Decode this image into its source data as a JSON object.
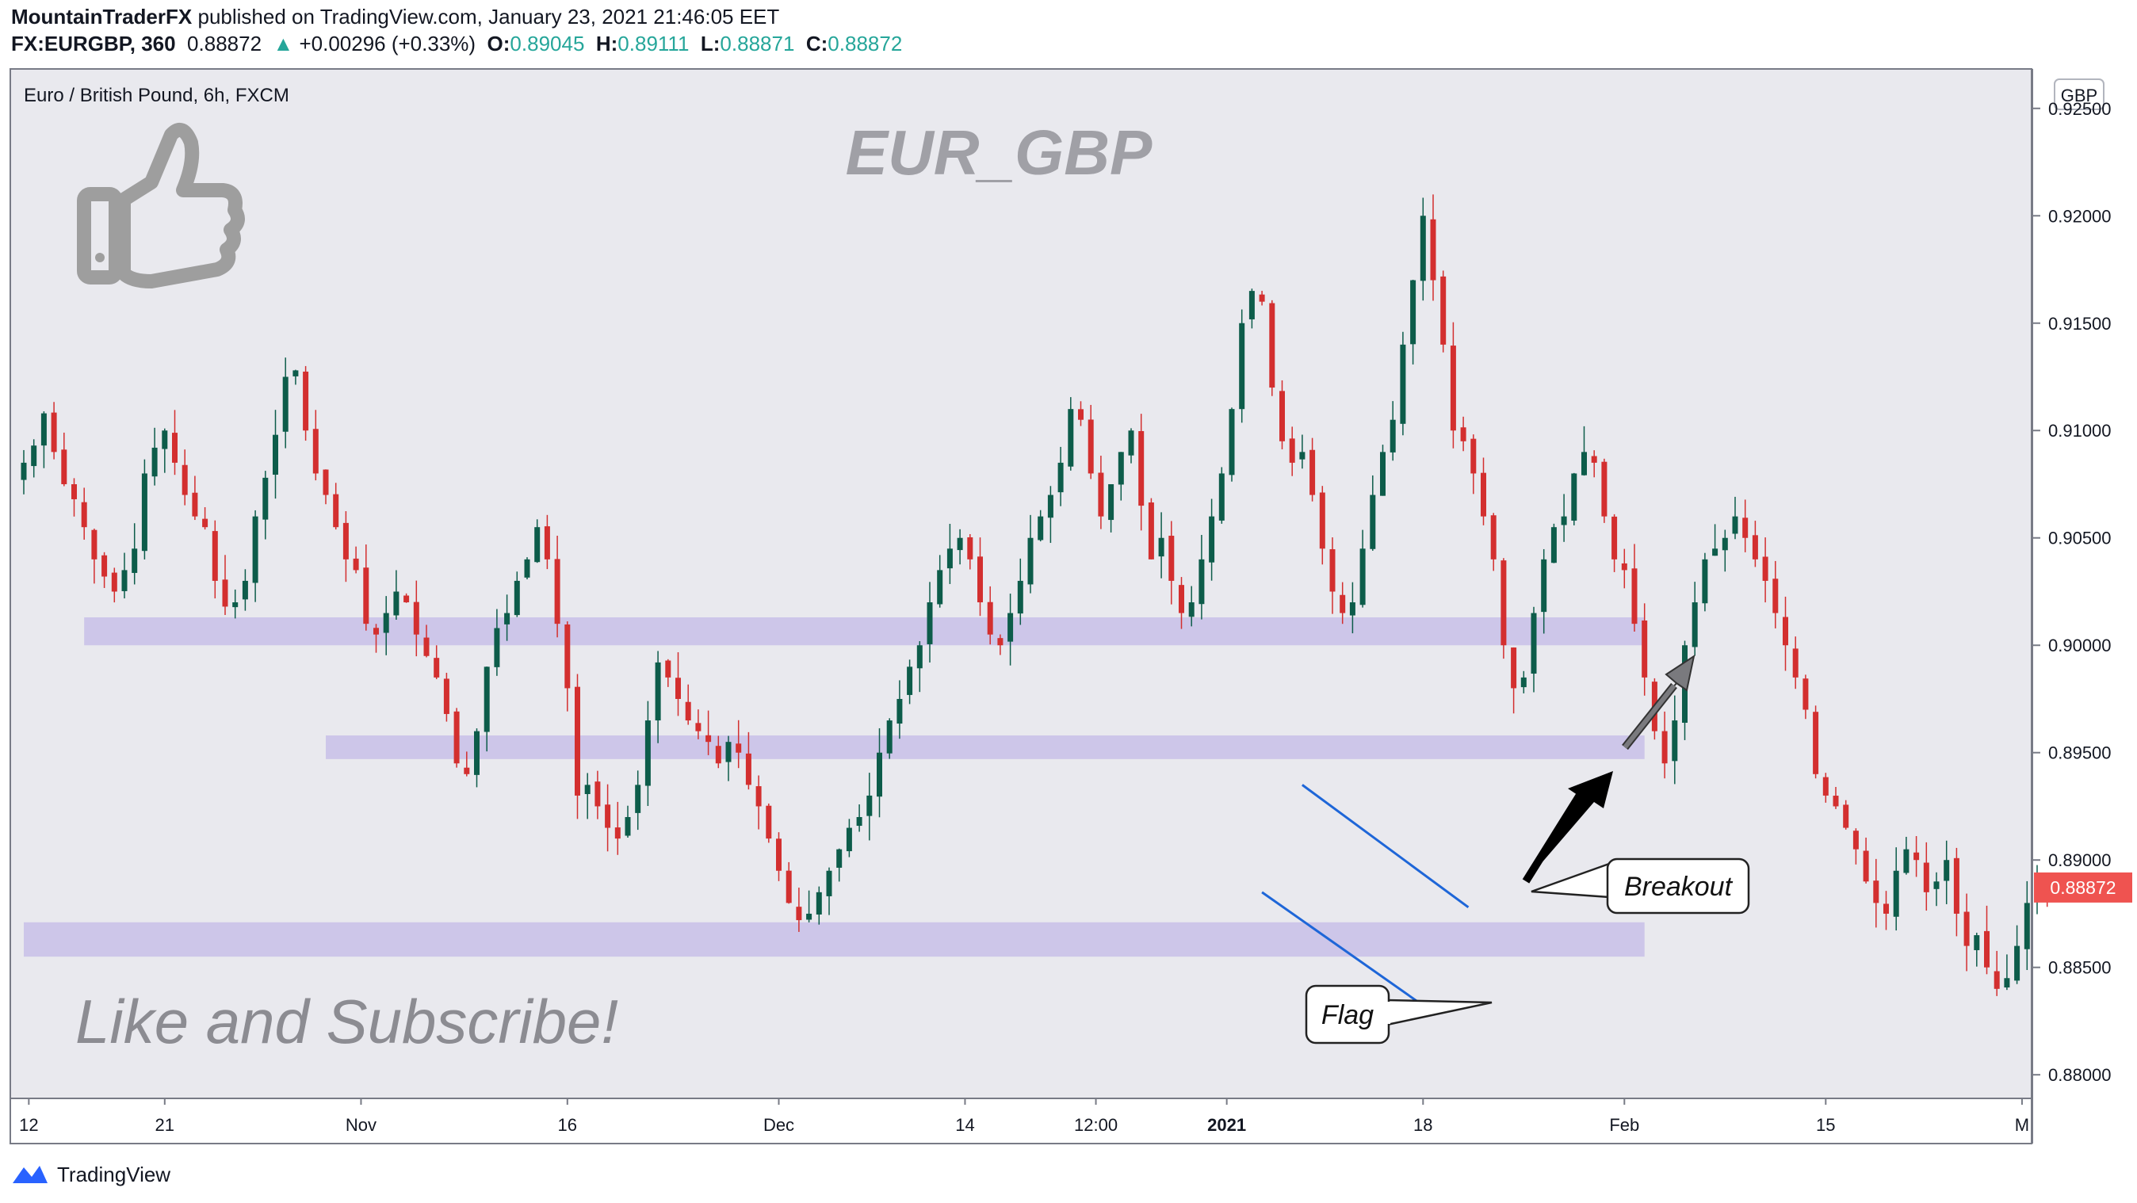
{
  "header": {
    "author": "MountainTraderFX",
    "published_text": "published on TradingView.com, January 23, 2021 21:46:05 EET",
    "symbol": "FX:EURGBP, 360",
    "last": "0.88872",
    "change_arrow": "▲",
    "change": "+0.00296 (+0.33%)",
    "o_label": "O:",
    "o": "0.89045",
    "h_label": "H:",
    "h": "0.89111",
    "l_label": "L:",
    "l": "0.88871",
    "c_label": "C:",
    "c": "0.88872"
  },
  "chart_title": "Euro / British Pound, 6h, FXCM",
  "watermark": "EUR_GBP",
  "cta_text": "Like and Subscribe!",
  "currency_badge": "GBP",
  "price_tag": "0.88872",
  "callouts": {
    "breakout": "Breakout",
    "flag": "Flag"
  },
  "footer": {
    "brand": "TradingView"
  },
  "icons": [
    "thumbs-up-icon",
    "tradingview-logo-icon"
  ],
  "colors": {
    "up": "#26a69a",
    "down": "#ef5350",
    "candle_up_body": "#0d5c4a",
    "candle_down_body": "#d32f2f",
    "zone": "#c8bfe7",
    "channel": "#1e66d8",
    "price_tag_bg": "#ef5350",
    "plot_bg": "#e9e9ee"
  },
  "chart_data": {
    "type": "candlestick",
    "title": "Euro / British Pound, 6h, FXCM",
    "y_ticks": [
      "0.92500",
      "0.92000",
      "0.91500",
      "0.91000",
      "0.90500",
      "0.90000",
      "0.89500",
      "0.89000",
      "0.88500",
      "0.88000"
    ],
    "y_range": [
      0.8789,
      0.9268
    ],
    "x_ticks": [
      {
        "label": "12",
        "i": 0.5
      },
      {
        "label": "21",
        "i": 14
      },
      {
        "label": "Nov",
        "i": 33.5
      },
      {
        "label": "16",
        "i": 54
      },
      {
        "label": "Dec",
        "i": 75
      },
      {
        "label": "14",
        "i": 93.5
      },
      {
        "label": "12:00",
        "i": 106.5
      },
      {
        "label": "2021",
        "i": 119.5,
        "bold": true
      },
      {
        "label": "18",
        "i": 139
      },
      {
        "label": "Feb",
        "i": 159
      },
      {
        "label": "15",
        "i": 179
      },
      {
        "label": "M",
        "i": 198.5
      }
    ],
    "candle_index_span": [
      0,
      200
    ],
    "series_closes": [
      0.9085,
      0.9093,
      0.9108,
      0.909,
      0.9075,
      0.9068,
      0.9055,
      0.904,
      0.9032,
      0.9025,
      0.9035,
      0.9045,
      0.908,
      0.9092,
      0.91,
      0.9085,
      0.907,
      0.906,
      0.9055,
      0.903,
      0.9018,
      0.902,
      0.903,
      0.906,
      0.9078,
      0.9098,
      0.9125,
      0.9128,
      0.91,
      0.908,
      0.907,
      0.9055,
      0.904,
      0.9035,
      0.901,
      0.9005,
      0.9015,
      0.9025,
      0.902,
      0.9005,
      0.8995,
      0.8985,
      0.8968,
      0.8945,
      0.894,
      0.896,
      0.899,
      0.9008,
      0.9015,
      0.903,
      0.904,
      0.9055,
      0.904,
      0.901,
      0.898,
      0.893,
      0.8935,
      0.8925,
      0.8915,
      0.891,
      0.892,
      0.8935,
      0.8965,
      0.8992,
      0.8985,
      0.8975,
      0.8965,
      0.896,
      0.8955,
      0.8945,
      0.8955,
      0.895,
      0.8935,
      0.8925,
      0.891,
      0.8895,
      0.888,
      0.8872,
      0.8875,
      0.8885,
      0.8895,
      0.8905,
      0.8915,
      0.892,
      0.893,
      0.895,
      0.8965,
      0.8975,
      0.899,
      0.9,
      0.902,
      0.9035,
      0.9045,
      0.905,
      0.904,
      0.902,
      0.9005,
      0.9,
      0.9015,
      0.903,
      0.905,
      0.906,
      0.907,
      0.9085,
      0.911,
      0.9105,
      0.908,
      0.906,
      0.9075,
      0.909,
      0.91,
      0.9065,
      0.904,
      0.905,
      0.903,
      0.9015,
      0.902,
      0.904,
      0.906,
      0.908,
      0.911,
      0.915,
      0.9165,
      0.916,
      0.912,
      0.9095,
      0.9085,
      0.909,
      0.907,
      0.9045,
      0.9025,
      0.9015,
      0.902,
      0.9045,
      0.907,
      0.909,
      0.9105,
      0.914,
      0.917,
      0.92,
      0.917,
      0.914,
      0.91,
      0.9095,
      0.908,
      0.906,
      0.904,
      0.9,
      0.898,
      0.8985,
      0.9015,
      0.904,
      0.9055,
      0.906,
      0.908,
      0.909,
      0.9085,
      0.906,
      0.904,
      0.9035,
      0.901,
      0.8985,
      0.896,
      0.8945,
      0.8965,
      0.9,
      0.902,
      0.904,
      0.9045,
      0.905,
      0.906,
      0.905,
      0.904,
      0.903,
      0.9015,
      0.9,
      0.8985,
      0.897,
      0.894,
      0.893,
      0.8925,
      0.8915,
      0.8905,
      0.889,
      0.888,
      0.8875,
      0.8895,
      0.8905,
      0.89,
      0.8885,
      0.889,
      0.89,
      0.8875,
      0.886,
      0.8865,
      0.885,
      0.884,
      0.8845,
      0.886,
      0.888,
      0.8892,
      0.8887
    ],
    "zones": [
      {
        "from_i": 6,
        "to_i": 161,
        "low": 0.9,
        "high": 0.9013
      },
      {
        "from_i": 30,
        "to_i": 161,
        "low": 0.8947,
        "high": 0.8958
      },
      {
        "from_i": 0,
        "to_i": 161,
        "low": 0.8855,
        "high": 0.8871
      }
    ],
    "flag_channel": {
      "upper": {
        "from_i": 127,
        "from": 0.8935,
        "to_i": 143.5,
        "to": 0.8878
      },
      "lower": {
        "from_i": 123,
        "from": 0.8885,
        "to_i": 140,
        "to": 0.8829
      }
    },
    "last_price": 0.88872
  }
}
